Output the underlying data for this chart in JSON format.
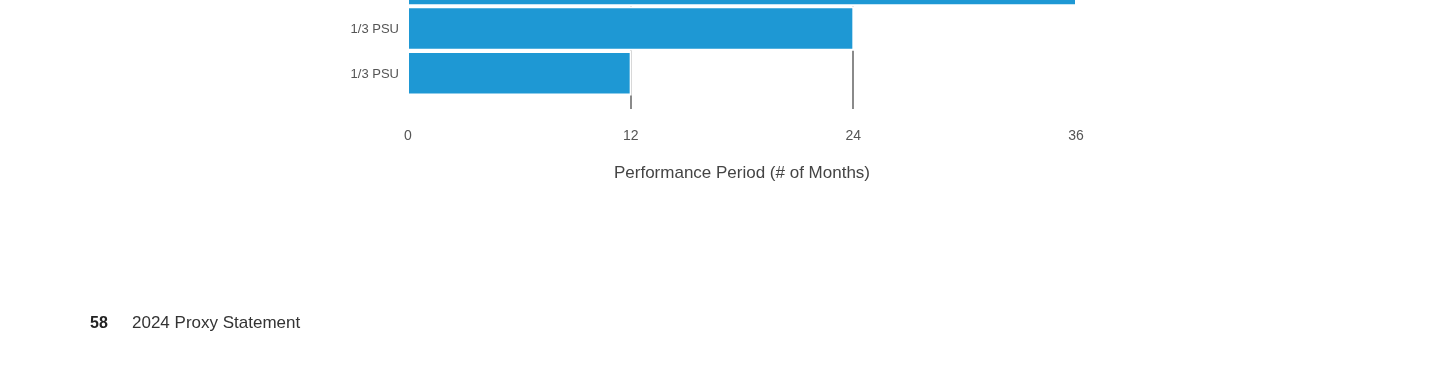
{
  "chart_data": {
    "type": "bar",
    "orientation": "horizontal",
    "xlabel": "Performance Period (# of Months)",
    "categories": [
      null,
      "1/3 PSU",
      "1/3 PSU"
    ],
    "values": [
      36,
      24,
      12
    ],
    "color": "#1e98d4",
    "xlim": [
      0,
      36
    ],
    "xticks": [
      0,
      12,
      24,
      36
    ],
    "grid": "x",
    "legend": false,
    "annotations": [
      "58",
      "2024 Proxy Statement"
    ]
  }
}
